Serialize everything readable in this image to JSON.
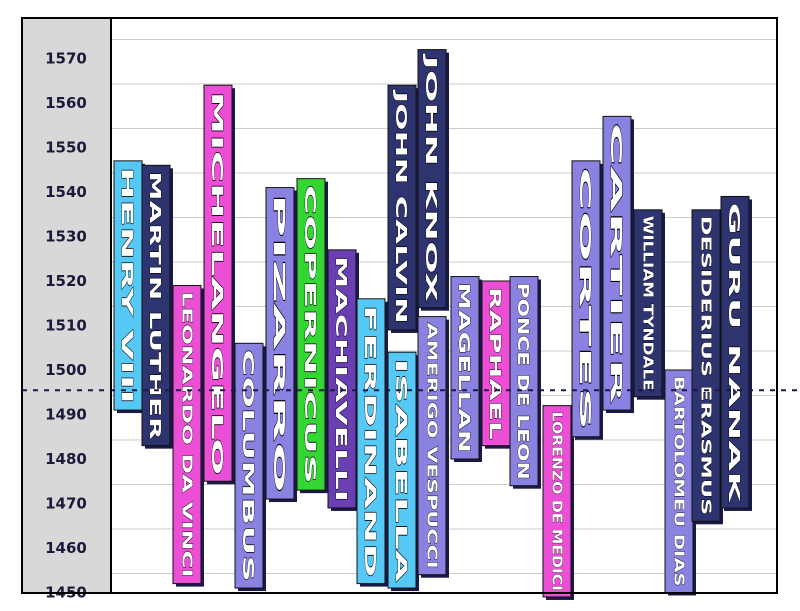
{
  "chart_data": {
    "type": "bar",
    "orientation": "vertical-range",
    "title": "",
    "xlabel": "",
    "ylabel": "",
    "ylim": [
      1445,
      1575
    ],
    "yticks": [
      1450,
      1460,
      1470,
      1480,
      1490,
      1500,
      1510,
      1520,
      1530,
      1540,
      1550,
      1560,
      1570
    ],
    "reference_line": 1495,
    "grid": true,
    "people": [
      {
        "name": "HENRY VIII",
        "start": 1491,
        "end": 1547,
        "color": "#56c8f5"
      },
      {
        "name": "MARTIN LUTHER",
        "start": 1483,
        "end": 1546,
        "color": "#2e3470"
      },
      {
        "name": "LEONARDO DA VINCI",
        "start": 1452,
        "end": 1519,
        "color": "#ec4fd6"
      },
      {
        "name": "MICHELANGELO",
        "start": 1475,
        "end": 1564,
        "color": "#ec4fd6"
      },
      {
        "name": "COLUMBUS",
        "start": 1451,
        "end": 1506,
        "color": "#8a82e0"
      },
      {
        "name": "PIZARRO",
        "start": 1471,
        "end": 1541,
        "color": "#8a82e0"
      },
      {
        "name": "COPERNICUS",
        "start": 1473,
        "end": 1543,
        "color": "#33d633"
      },
      {
        "name": "MACHIAVELLI",
        "start": 1469,
        "end": 1527,
        "color": "#6a3fb4"
      },
      {
        "name": "FERDINAND",
        "start": 1452,
        "end": 1516,
        "color": "#56c8f5"
      },
      {
        "name": "ISABELLA",
        "start": 1451,
        "end": 1504,
        "color": "#56c8f5"
      },
      {
        "name": "JOHN CALVIN",
        "start": 1509,
        "end": 1564,
        "color": "#2e3470"
      },
      {
        "name": "JOHN KNOX",
        "start": 1514,
        "end": 1572,
        "color": "#2e3470"
      },
      {
        "name": "AMERIGO VESPUCCI",
        "start": 1454,
        "end": 1512,
        "color": "#8a82e0"
      },
      {
        "name": "MAGELLAN",
        "start": 1480,
        "end": 1521,
        "color": "#8a82e0"
      },
      {
        "name": "RAPHAEL",
        "start": 1483,
        "end": 1520,
        "color": "#ec4fd6"
      },
      {
        "name": "PONCE DE LEON",
        "start": 1474,
        "end": 1521,
        "color": "#8a82e0"
      },
      {
        "name": "LORENZO DE MEDICI",
        "start": 1449,
        "end": 1492,
        "color": "#ec4fd6"
      },
      {
        "name": "CORTES",
        "start": 1485,
        "end": 1547,
        "color": "#8a82e0"
      },
      {
        "name": "CARTIER",
        "start": 1491,
        "end": 1557,
        "color": "#8a82e0"
      },
      {
        "name": "WILLIAM TYNDALE",
        "start": 1494,
        "end": 1536,
        "color": "#2e3470"
      },
      {
        "name": "BARTOLOMEU DIAS",
        "start": 1450,
        "end": 1500,
        "color": "#8a82e0"
      },
      {
        "name": "DESIDERIUS ERASMUS",
        "start": 1466,
        "end": 1536,
        "color": "#2e3470"
      },
      {
        "name": "GURU NANAK",
        "start": 1469,
        "end": 1539,
        "color": "#2e3470"
      }
    ]
  }
}
